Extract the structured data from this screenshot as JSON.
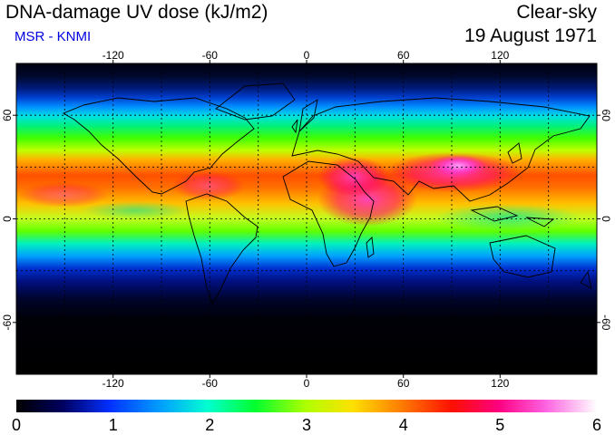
{
  "header": {
    "title": "DNA-damage UV dose (kJ/m2)",
    "subtitle": "MSR - KNMI",
    "sky_condition": "Clear-sky",
    "date": "19 August 1971"
  },
  "map": {
    "projection": "equirectangular",
    "grid": "dotted 30° graticule",
    "lon_ticks": [
      "-120",
      "-60",
      "0",
      "60",
      "120"
    ],
    "lat_ticks": [
      "60",
      "0",
      "-60"
    ],
    "lon_tick_values": [
      -120,
      -60,
      0,
      60,
      120
    ],
    "lat_tick_values": [
      60,
      0,
      -60
    ],
    "lon_range": [
      -180,
      180
    ],
    "lat_range": [
      -90,
      90
    ]
  },
  "colorbar": {
    "labels": [
      "0",
      "1",
      "2",
      "3",
      "4",
      "5",
      "6"
    ],
    "range": [
      0,
      6
    ],
    "unit": "kJ/m2",
    "colors": [
      "#000000",
      "#000080",
      "#0060ff",
      "#00ffff",
      "#00ff00",
      "#ffff00",
      "#ff8000",
      "#ff0000",
      "#ff00a0",
      "#ffb0ff",
      "#ffffff"
    ]
  }
}
